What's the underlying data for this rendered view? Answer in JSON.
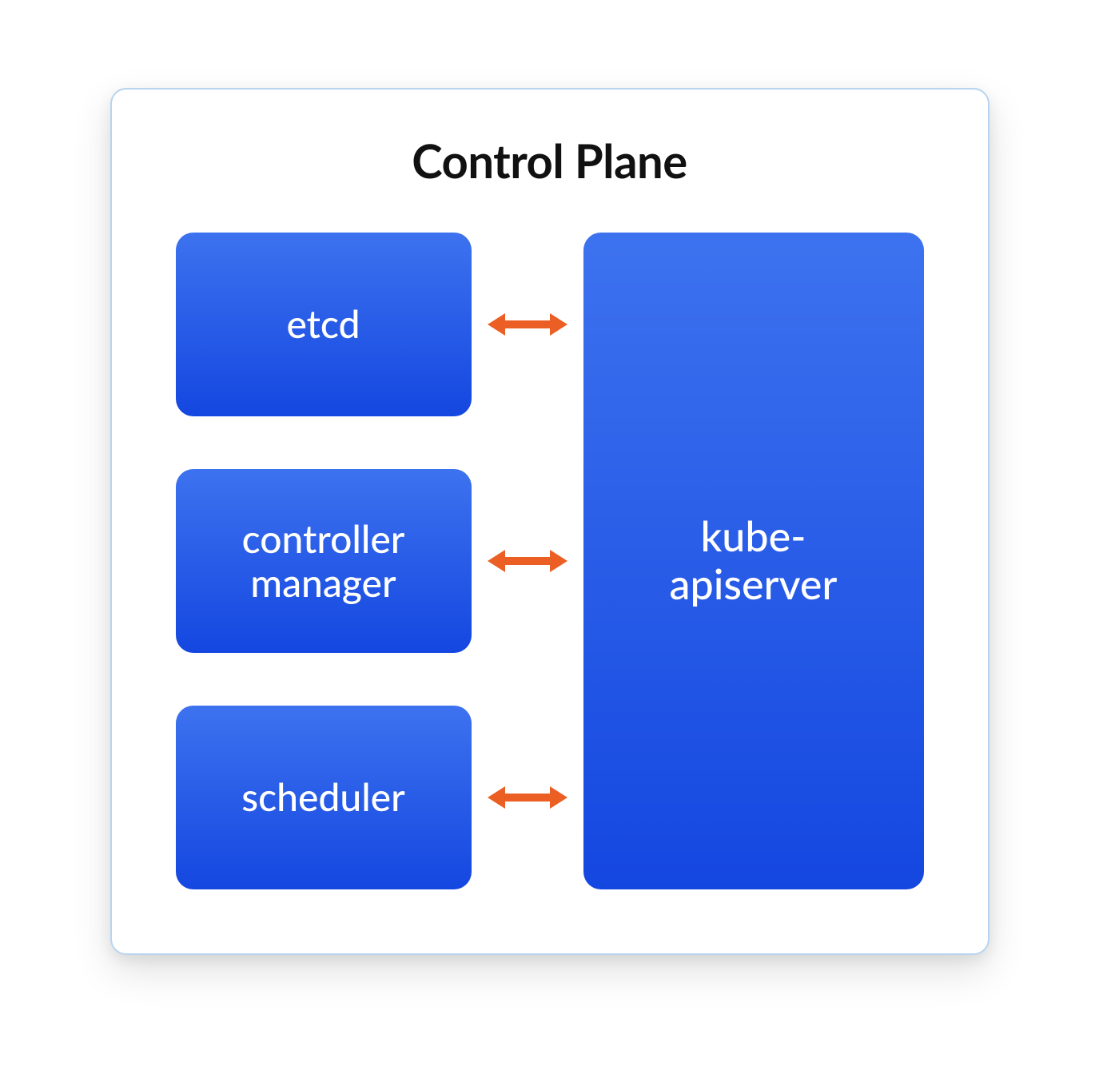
{
  "diagram": {
    "type": "flowchart",
    "title": "Control Plane",
    "title_fontsize": 58,
    "title_color": "#111111",
    "panel": {
      "border_color": "#b8d4f0",
      "background_color": "#ffffff",
      "border_radius": 20,
      "shadow": true
    },
    "node_style": {
      "gradient_top": "#3d72ef",
      "gradient_bottom": "#1447e0",
      "text_color": "#ffffff",
      "border_radius": 22,
      "font_weight": 500
    },
    "left_nodes": [
      {
        "id": "etcd",
        "label": "etcd",
        "fontsize": 48
      },
      {
        "id": "controller-manager",
        "label": "controller\nmanager",
        "fontsize": 48
      },
      {
        "id": "scheduler",
        "label": "scheduler",
        "fontsize": 48
      }
    ],
    "right_node": {
      "id": "kube-apiserver",
      "label": "kube-\napiserver",
      "fontsize": 52
    },
    "arrows": {
      "color": "#ec5f24",
      "stroke_width": 10,
      "style": "double-headed",
      "count": 3
    },
    "background_color": "#ffffff"
  }
}
